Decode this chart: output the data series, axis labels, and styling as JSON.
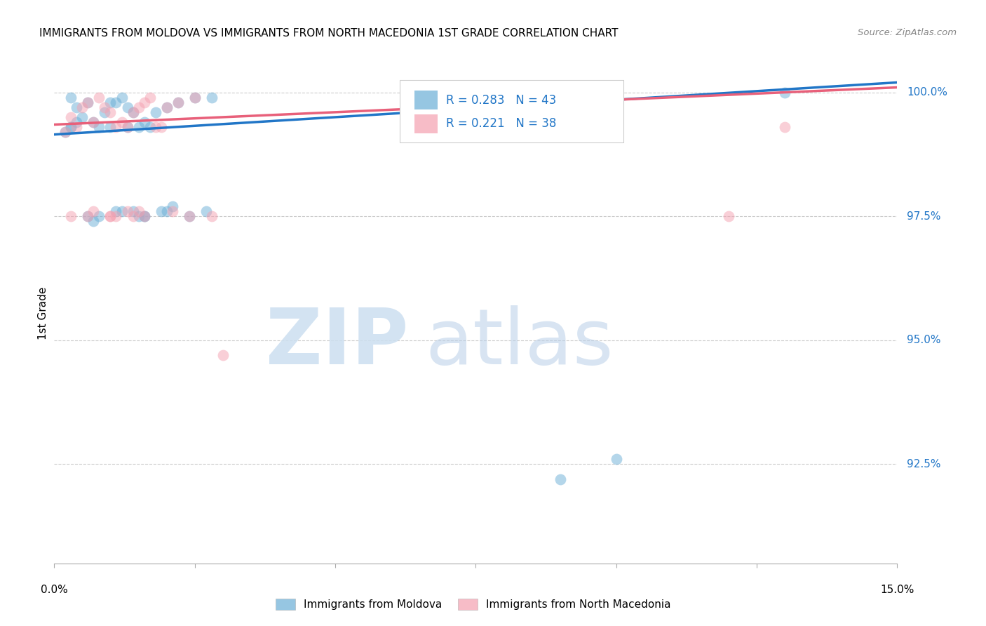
{
  "title": "IMMIGRANTS FROM MOLDOVA VS IMMIGRANTS FROM NORTH MACEDONIA 1ST GRADE CORRELATION CHART",
  "source": "Source: ZipAtlas.com",
  "ylabel": "1st Grade",
  "right_ytick_labels": [
    "100.0%",
    "97.5%",
    "95.0%",
    "92.5%"
  ],
  "right_ytick_values": [
    1.0,
    0.975,
    0.95,
    0.925
  ],
  "xlim": [
    0.0,
    0.15
  ],
  "ylim": [
    0.905,
    1.006
  ],
  "legend_r1": "R = 0.283",
  "legend_n1": "N = 43",
  "legend_r2": "R = 0.221",
  "legend_n2": "N = 38",
  "legend_label1": "Immigrants from Moldova",
  "legend_label2": "Immigrants from North Macedonia",
  "blue_color": "#6aaed6",
  "pink_color": "#f4a0b0",
  "blue_line_color": "#2176c7",
  "pink_line_color": "#e8607a",
  "scatter_blue_x": [
    0.005,
    0.006,
    0.003,
    0.004,
    0.008,
    0.009,
    0.011,
    0.012,
    0.013,
    0.014,
    0.015,
    0.016,
    0.017,
    0.018,
    0.02,
    0.022,
    0.025,
    0.028,
    0.003,
    0.007,
    0.01,
    0.013,
    0.016,
    0.019,
    0.021,
    0.024,
    0.027,
    0.004,
    0.008,
    0.012,
    0.016,
    0.02,
    0.002,
    0.006,
    0.01,
    0.014,
    0.003,
    0.007,
    0.011,
    0.015,
    0.09,
    0.1,
    0.13
  ],
  "scatter_blue_y": [
    0.995,
    0.998,
    0.999,
    0.997,
    0.993,
    0.996,
    0.998,
    0.999,
    0.997,
    0.996,
    0.993,
    0.994,
    0.993,
    0.996,
    0.997,
    0.998,
    0.999,
    0.999,
    0.993,
    0.994,
    0.998,
    0.993,
    0.975,
    0.976,
    0.977,
    0.975,
    0.976,
    0.994,
    0.975,
    0.976,
    0.975,
    0.976,
    0.992,
    0.975,
    0.993,
    0.976,
    0.993,
    0.974,
    0.976,
    0.975,
    0.922,
    0.926,
    1.0
  ],
  "scatter_pink_x": [
    0.003,
    0.005,
    0.006,
    0.008,
    0.009,
    0.01,
    0.011,
    0.012,
    0.013,
    0.014,
    0.015,
    0.016,
    0.017,
    0.018,
    0.02,
    0.022,
    0.025,
    0.028,
    0.004,
    0.007,
    0.01,
    0.013,
    0.016,
    0.019,
    0.021,
    0.024,
    0.003,
    0.007,
    0.011,
    0.015,
    0.002,
    0.006,
    0.01,
    0.014,
    0.03,
    0.1,
    0.12,
    0.13
  ],
  "scatter_pink_y": [
    0.995,
    0.997,
    0.998,
    0.999,
    0.997,
    0.996,
    0.993,
    0.994,
    0.993,
    0.996,
    0.997,
    0.998,
    0.999,
    0.993,
    0.997,
    0.998,
    0.999,
    0.975,
    0.993,
    0.994,
    0.975,
    0.976,
    0.975,
    0.993,
    0.976,
    0.975,
    0.975,
    0.976,
    0.975,
    0.976,
    0.992,
    0.975,
    0.975,
    0.975,
    0.947,
    1.0,
    0.975,
    0.993
  ],
  "blue_line_x": [
    0.0,
    0.15
  ],
  "blue_line_y": [
    0.9915,
    1.002
  ],
  "pink_line_x": [
    0.0,
    0.15
  ],
  "pink_line_y": [
    0.9935,
    1.001
  ],
  "grid_yticks": [
    1.0,
    0.975,
    0.95,
    0.925
  ],
  "xtick_positions": [
    0.0,
    0.025,
    0.05,
    0.075,
    0.1,
    0.125,
    0.15
  ]
}
